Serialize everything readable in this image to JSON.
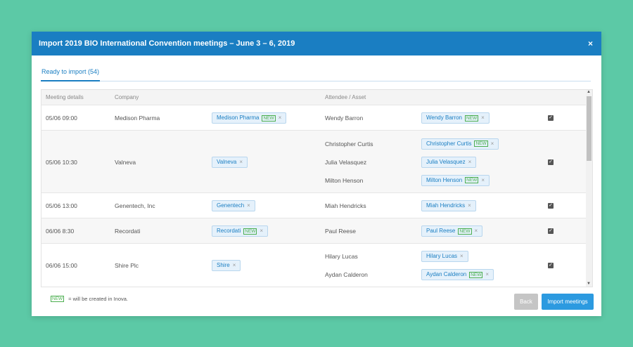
{
  "header": {
    "title": "Import 2019 BIO International Convention meetings – June 3 – 6, 2019",
    "close": "×"
  },
  "tabs": [
    {
      "label": "Ready to import (54)"
    }
  ],
  "columns": {
    "meeting": "Meeting details",
    "company": "Company",
    "attendee": "Attendee / Asset"
  },
  "new_badge": "NEW",
  "chip_close": "×",
  "rows": [
    {
      "time": "05/06 09:00",
      "company": "Medison Pharma",
      "company_chip": "Medison Pharma",
      "company_new": true,
      "attendees": [
        {
          "name": "Wendy Barron",
          "chip": "Wendy Barron",
          "new": true
        }
      ]
    },
    {
      "time": "05/06 10:30",
      "company": "Valneva",
      "company_chip": "Valneva",
      "company_new": false,
      "attendees": [
        {
          "name": "Christopher Curtis",
          "chip": "Christopher Curtis",
          "new": true
        },
        {
          "name": "Julia Velasquez",
          "chip": "Julia Velasquez",
          "new": false
        },
        {
          "name": "Milton Henson",
          "chip": "Milton Henson",
          "new": true
        }
      ]
    },
    {
      "time": "05/06 13:00",
      "company": "Genentech, Inc",
      "company_chip": "Genentech",
      "company_new": false,
      "attendees": [
        {
          "name": "Miah Hendricks",
          "chip": "Miah Hendricks",
          "new": false
        }
      ]
    },
    {
      "time": "06/06 8:30",
      "company": "Recordati",
      "company_chip": "Recordati",
      "company_new": true,
      "attendees": [
        {
          "name": "Paul Reese",
          "chip": "Paul Reese",
          "new": true
        }
      ]
    },
    {
      "time": "06/06 15:00",
      "company": "Shire Plc",
      "company_chip": "Shire",
      "company_new": false,
      "attendees": [
        {
          "name": "Hilary Lucas",
          "chip": "Hilary Lucas",
          "new": false
        },
        {
          "name": "Aydan Calderon",
          "chip": "Aydan Calderon",
          "new": true
        }
      ]
    }
  ],
  "footer": {
    "legend_text": "= will be created in Inova.",
    "back": "Back",
    "import": "Import meetings"
  }
}
